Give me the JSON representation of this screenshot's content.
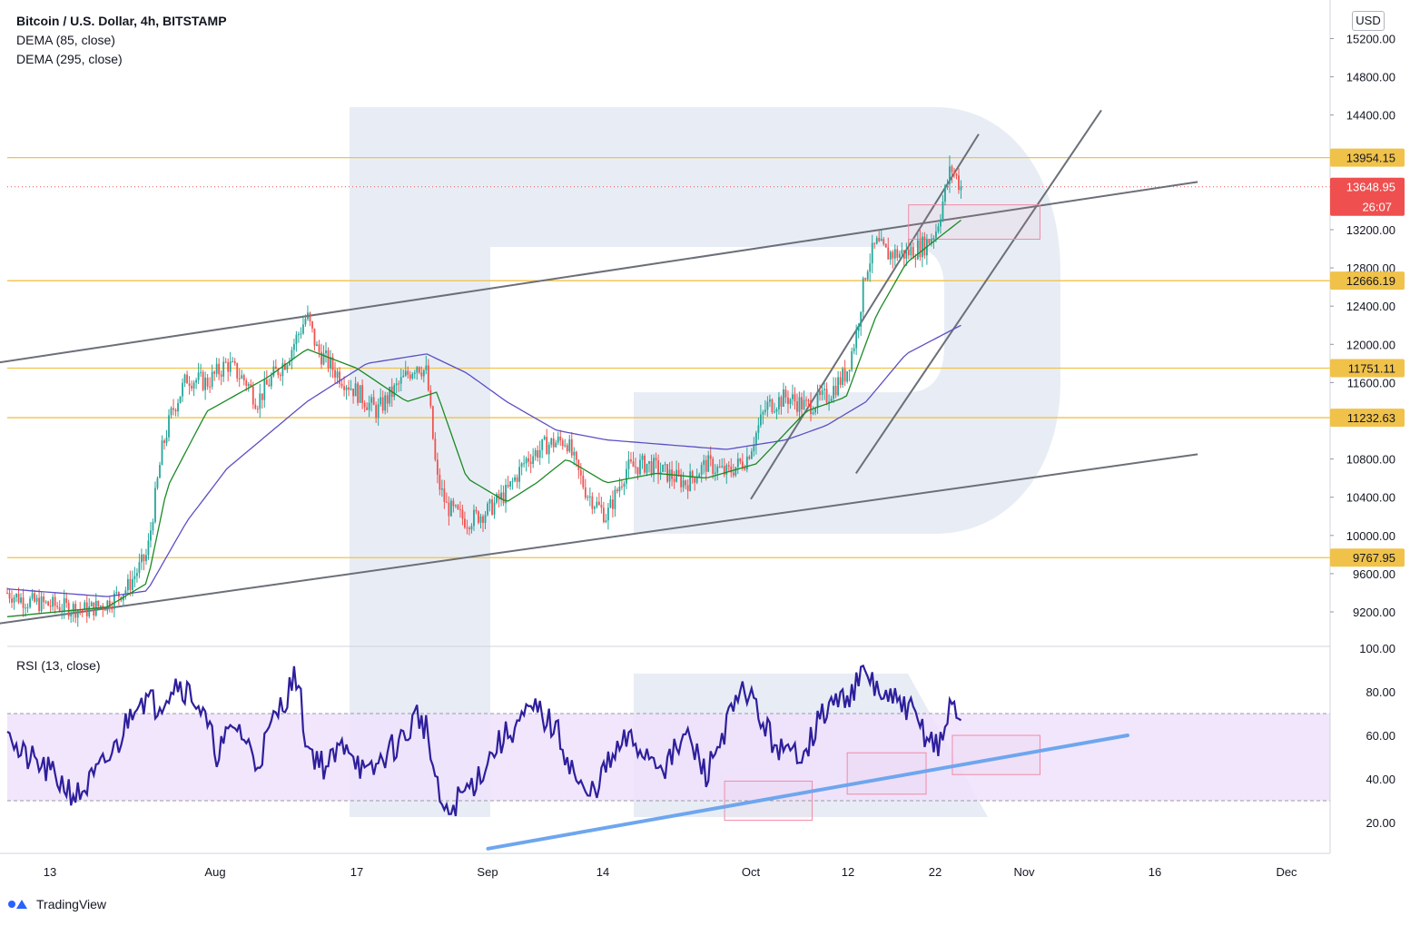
{
  "header": {
    "title": "Bitcoin / U.S. Dollar, 4h, BITSTAMP",
    "indicator_1": "DEMA (85, close)",
    "indicator_2": "DEMA (295, close)",
    "rsi_label": "RSI (13, close)",
    "currency_button": "USD"
  },
  "footer": {
    "brand": "TradingView"
  },
  "colors": {
    "up": "#26a69a",
    "down": "#ef5350",
    "dema85": "#1b8a24",
    "dema295": "#5b4fc4",
    "level": "#f0c24a",
    "price_tag": "#ef4f4f",
    "rsi_line": "#2e1f9c",
    "rsi_band": "#efe2fb",
    "trend_blue": "#6ea6ee",
    "channel": "#6b6f78",
    "box": "#f18aa7"
  },
  "chart_data": [
    {
      "type": "candlestick",
      "title": "Bitcoin / U.S. Dollar, 4h, BITSTAMP",
      "price_axis": {
        "ticks": [
          9200,
          9600,
          10000,
          10400,
          10800,
          11200,
          11600,
          12000,
          12400,
          12800,
          13200,
          13600,
          14000,
          14400,
          14800,
          15200
        ],
        "tick_labels": [
          "9200.00",
          "9600.00",
          "10000.00",
          "10400.00",
          "10800.00",
          "11600.00",
          "12000.00",
          "12400.00",
          "12800.00",
          "13200.00",
          "14400.00",
          "14800.00",
          "15200.00"
        ],
        "range": [
          8950,
          15450
        ]
      },
      "time_axis": {
        "labels": [
          "13",
          "Aug",
          "17",
          "Sep",
          "14",
          "Oct",
          "12",
          "22",
          "Nov",
          "16",
          "Dec"
        ]
      },
      "horizontal_levels": [
        {
          "value": 13954.15,
          "label": "13954.15"
        },
        {
          "value": 12666.19,
          "label": "12666.19"
        },
        {
          "value": 11751.11,
          "label": "11751.11"
        },
        {
          "value": 11232.63,
          "label": "11232.63"
        },
        {
          "value": 9767.95,
          "label": "9767.95"
        }
      ],
      "last_price": {
        "value": 13648.95,
        "label": "13648.95",
        "countdown": "26:07"
      },
      "series": [
        {
          "name": "DEMA (85, close)"
        },
        {
          "name": "DEMA (295, close)"
        }
      ],
      "price_path": [
        [
          0,
          9400
        ],
        [
          0.02,
          9310
        ],
        [
          0.05,
          9260
        ],
        [
          0.08,
          9220
        ],
        [
          0.1,
          9290
        ],
        [
          0.12,
          9450
        ],
        [
          0.14,
          9800
        ],
        [
          0.155,
          10900
        ],
        [
          0.165,
          11300
        ],
        [
          0.18,
          11650
        ],
        [
          0.2,
          11600
        ],
        [
          0.22,
          11800
        ],
        [
          0.24,
          11600
        ],
        [
          0.25,
          11400
        ],
        [
          0.265,
          11650
        ],
        [
          0.28,
          11850
        ],
        [
          0.3,
          12300
        ],
        [
          0.31,
          11950
        ],
        [
          0.33,
          11700
        ],
        [
          0.35,
          11500
        ],
        [
          0.37,
          11300
        ],
        [
          0.39,
          11550
        ],
        [
          0.41,
          11800
        ],
        [
          0.42,
          11700
        ],
        [
          0.43,
          10600
        ],
        [
          0.44,
          10300
        ],
        [
          0.46,
          10150
        ],
        [
          0.48,
          10250
        ],
        [
          0.5,
          10450
        ],
        [
          0.52,
          10800
        ],
        [
          0.54,
          10950
        ],
        [
          0.56,
          11000
        ],
        [
          0.57,
          10700
        ],
        [
          0.58,
          10450
        ],
        [
          0.6,
          10200
        ],
        [
          0.62,
          10700
        ],
        [
          0.64,
          10750
        ],
        [
          0.66,
          10650
        ],
        [
          0.68,
          10550
        ],
        [
          0.7,
          10750
        ],
        [
          0.72,
          10650
        ],
        [
          0.74,
          10800
        ],
        [
          0.76,
          11350
        ],
        [
          0.78,
          11450
        ],
        [
          0.8,
          11350
        ],
        [
          0.82,
          11450
        ],
        [
          0.84,
          11700
        ],
        [
          0.85,
          12100
        ],
        [
          0.86,
          12800
        ],
        [
          0.87,
          13050
        ],
        [
          0.88,
          12950
        ],
        [
          0.9,
          12950
        ],
        [
          0.92,
          13050
        ],
        [
          0.93,
          13200
        ],
        [
          0.945,
          13850
        ],
        [
          0.955,
          13648.95
        ]
      ],
      "dema85_path": [
        [
          0,
          9150
        ],
        [
          0.1,
          9250
        ],
        [
          0.14,
          9500
        ],
        [
          0.16,
          10500
        ],
        [
          0.2,
          11300
        ],
        [
          0.26,
          11650
        ],
        [
          0.3,
          11950
        ],
        [
          0.35,
          11750
        ],
        [
          0.4,
          11400
        ],
        [
          0.43,
          11500
        ],
        [
          0.46,
          10600
        ],
        [
          0.5,
          10350
        ],
        [
          0.53,
          10550
        ],
        [
          0.56,
          10800
        ],
        [
          0.6,
          10550
        ],
        [
          0.65,
          10650
        ],
        [
          0.7,
          10600
        ],
        [
          0.75,
          10750
        ],
        [
          0.8,
          11300
        ],
        [
          0.84,
          11450
        ],
        [
          0.87,
          12300
        ],
        [
          0.9,
          12850
        ],
        [
          0.955,
          13300
        ]
      ],
      "dema295_path": [
        [
          0,
          9440
        ],
        [
          0.1,
          9360
        ],
        [
          0.14,
          9420
        ],
        [
          0.18,
          10150
        ],
        [
          0.22,
          10700
        ],
        [
          0.3,
          11400
        ],
        [
          0.36,
          11800
        ],
        [
          0.42,
          11900
        ],
        [
          0.46,
          11700
        ],
        [
          0.5,
          11400
        ],
        [
          0.55,
          11100
        ],
        [
          0.6,
          11000
        ],
        [
          0.66,
          10950
        ],
        [
          0.72,
          10900
        ],
        [
          0.78,
          11000
        ],
        [
          0.82,
          11150
        ],
        [
          0.86,
          11400
        ],
        [
          0.9,
          11900
        ],
        [
          0.955,
          12200
        ]
      ],
      "rsi_path": [
        [
          0,
          68
        ],
        [
          0.01,
          52
        ],
        [
          0.03,
          47
        ],
        [
          0.05,
          40
        ],
        [
          0.07,
          32
        ],
        [
          0.09,
          42
        ],
        [
          0.11,
          55
        ],
        [
          0.13,
          78
        ],
        [
          0.15,
          74
        ],
        [
          0.17,
          85
        ],
        [
          0.19,
          76
        ],
        [
          0.21,
          52
        ],
        [
          0.23,
          65
        ],
        [
          0.25,
          47
        ],
        [
          0.27,
          70
        ],
        [
          0.29,
          88
        ],
        [
          0.3,
          55
        ],
        [
          0.32,
          45
        ],
        [
          0.34,
          58
        ],
        [
          0.36,
          40
        ],
        [
          0.38,
          52
        ],
        [
          0.4,
          60
        ],
        [
          0.41,
          70
        ],
        [
          0.42,
          63
        ],
        [
          0.43,
          35
        ],
        [
          0.44,
          22
        ],
        [
          0.45,
          30
        ],
        [
          0.47,
          40
        ],
        [
          0.49,
          55
        ],
        [
          0.51,
          65
        ],
        [
          0.53,
          72
        ],
        [
          0.55,
          62
        ],
        [
          0.57,
          40
        ],
        [
          0.58,
          30
        ],
        [
          0.6,
          45
        ],
        [
          0.62,
          58
        ],
        [
          0.64,
          52
        ],
        [
          0.66,
          46
        ],
        [
          0.68,
          60
        ],
        [
          0.7,
          42
        ],
        [
          0.72,
          65
        ],
        [
          0.74,
          82
        ],
        [
          0.76,
          62
        ],
        [
          0.78,
          50
        ],
        [
          0.8,
          55
        ],
        [
          0.82,
          72
        ],
        [
          0.84,
          78
        ],
        [
          0.86,
          88
        ],
        [
          0.88,
          76
        ],
        [
          0.9,
          74
        ],
        [
          0.92,
          60
        ],
        [
          0.935,
          55
        ],
        [
          0.945,
          75
        ],
        [
          0.955,
          68
        ]
      ],
      "channel_lines": [
        {
          "from": [
            "2020-07-05",
            11780
          ],
          "to": [
            "2020-11-21",
            13700
          ]
        },
        {
          "from": [
            "2020-07-05",
            9050
          ],
          "to": [
            "2020-11-21",
            10850
          ]
        }
      ],
      "steep_lines": [
        {
          "from": [
            "2020-10-01",
            10380
          ],
          "to": [
            "2020-10-27",
            14200
          ]
        },
        {
          "from": [
            "2020-10-13",
            10650
          ],
          "to": [
            "2020-11-10",
            14450
          ]
        }
      ],
      "zones": [
        {
          "from": [
            "2020-10-19",
            13100
          ],
          "to": [
            "2020-11-03",
            13460
          ]
        }
      ],
      "rsi_axis": {
        "ticks": [
          20,
          40,
          60,
          80,
          100
        ],
        "tick_labels": [
          "20.00",
          "40.00",
          "60.00",
          "80.00",
          "100.00"
        ],
        "band": [
          30,
          70
        ]
      },
      "rsi_trendline": {
        "from": [
          "2020-09-01",
          8
        ],
        "to": [
          "2020-11-13",
          60
        ]
      },
      "rsi_boxes": [
        {
          "from": [
            "2020-09-28",
            21
          ],
          "to": [
            "2020-10-08",
            39
          ]
        },
        {
          "from": [
            "2020-10-12",
            33
          ],
          "to": [
            "2020-10-21",
            52
          ]
        },
        {
          "from": [
            "2020-10-24",
            42
          ],
          "to": [
            "2020-11-03",
            60
          ]
        }
      ]
    }
  ]
}
